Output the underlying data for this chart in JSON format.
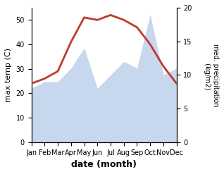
{
  "months": [
    "Jan",
    "Feb",
    "Mar",
    "Apr",
    "May",
    "Jun",
    "Jul",
    "Aug",
    "Sep",
    "Oct",
    "Nov",
    "Dec"
  ],
  "temp": [
    24,
    26,
    29,
    41,
    51,
    50,
    52,
    50,
    47,
    40,
    31,
    24
  ],
  "precip": [
    8,
    9,
    9,
    11,
    14,
    8,
    10,
    12,
    11,
    19,
    10,
    11
  ],
  "temp_color": "#c0392b",
  "precip_color": "#aec6e8",
  "ylabel_left": "max temp (C)",
  "ylabel_right": "med. precipitation\n (kg/m2)",
  "xlabel": "date (month)",
  "ylim_left": [
    0,
    55
  ],
  "ylim_right": [
    0,
    20
  ],
  "yticks_left": [
    0,
    10,
    20,
    30,
    40,
    50
  ],
  "yticks_right": [
    0,
    5,
    10,
    15,
    20
  ]
}
